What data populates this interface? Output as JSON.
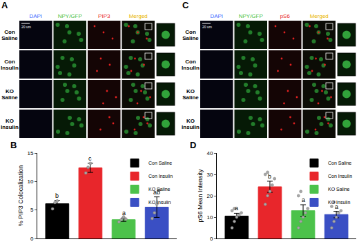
{
  "figure": {
    "panels": [
      {
        "label": "A",
        "columns": [
          "DAPI",
          "NPY/GFP",
          "PIP3",
          "Merged"
        ],
        "rows": [
          "Con Saline",
          "Con Insulin",
          "KO Saline",
          "KO Insulin"
        ],
        "scale_bar": "20 um"
      },
      {
        "label": "C",
        "columns": [
          "DAPI",
          "NPY/GFP",
          "pS6",
          "Merged"
        ],
        "rows": [
          "Con Saline",
          "Con Insulin",
          "KO Saline",
          "KO Insulin"
        ],
        "scale_bar": "20 um"
      }
    ]
  },
  "chart_data": [
    {
      "label": "B",
      "type": "bar",
      "y_label": "% PIP3 Colocalization",
      "categories": [
        "Con Saline",
        "Con Insulin",
        "KO Saline",
        "KO Insulin"
      ],
      "values": [
        6.1,
        12.4,
        3.3,
        5.5
      ],
      "errors": [
        0.6,
        0.8,
        0.3,
        1.8
      ],
      "points": [
        [
          5.2,
          6.3,
          6.6
        ],
        [
          11.5,
          12.5,
          13.2
        ],
        [
          2.9,
          3.3,
          3.8,
          3.4
        ],
        [
          3.5,
          4.5,
          6.0,
          8.5
        ]
      ],
      "group_letters": [
        "b",
        "c",
        "a",
        "ab"
      ],
      "colors": [
        "#000000",
        "#e8262b",
        "#4cc24a",
        "#3a4fc4"
      ],
      "ylim": [
        0,
        15
      ],
      "yticks": [
        0,
        5,
        10,
        15
      ],
      "legend": "upper right",
      "tick_labels": "y"
    },
    {
      "label": "D",
      "type": "bar",
      "y_label": "pS6 Mean Intensity",
      "categories": [
        "Con Saline",
        "Con Insulin",
        "KO Saline",
        "KO Insulin"
      ],
      "values": [
        10.5,
        24.2,
        13.0,
        11.2
      ],
      "errors": [
        1.3,
        2.6,
        2.8,
        1.5
      ],
      "points": [
        [
          5,
          8,
          10,
          11,
          12,
          13,
          14
        ],
        [
          16,
          20,
          22,
          25,
          28,
          30,
          31
        ],
        [
          5,
          8,
          10,
          12,
          14,
          20,
          22
        ],
        [
          5,
          8,
          10,
          12,
          13,
          15,
          17
        ]
      ],
      "group_letters": [
        "a",
        "b",
        "a",
        "a"
      ],
      "colors": [
        "#000000",
        "#e8262b",
        "#4cc24a",
        "#3a4fc4"
      ],
      "ylim": [
        0,
        40
      ],
      "yticks": [
        0,
        10,
        20,
        30,
        40
      ],
      "legend": "upper right",
      "tick_labels": "y"
    }
  ]
}
